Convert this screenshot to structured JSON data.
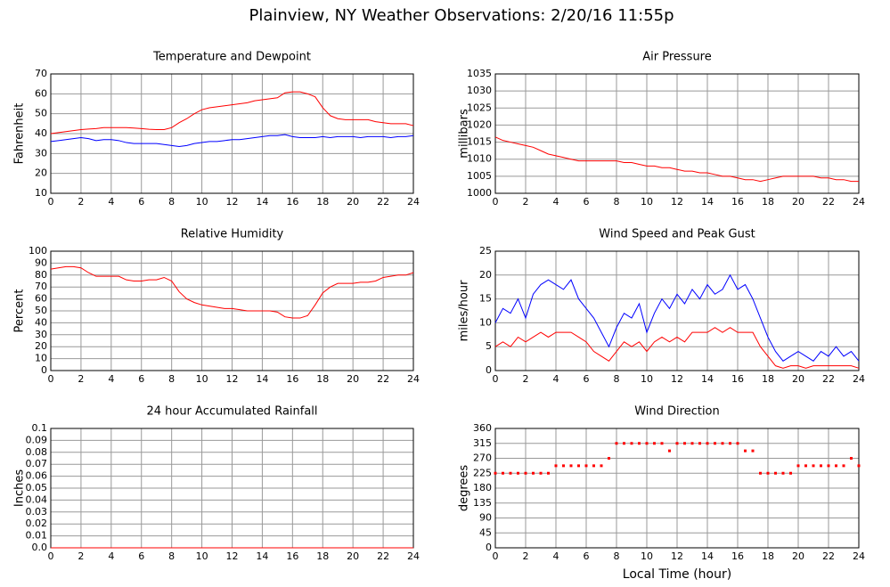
{
  "title": "Plainview, NY Weather Observations: 2/20/16 11:55p",
  "chart_data": [
    {
      "type": "line",
      "title": "Temperature and Dewpoint",
      "ylabel": "Fahrenheit",
      "x": [
        0,
        0.5,
        1,
        1.5,
        2,
        2.5,
        3,
        3.5,
        4,
        4.5,
        5,
        5.5,
        6,
        6.5,
        7,
        7.5,
        8,
        8.5,
        9,
        9.5,
        10,
        10.5,
        11,
        11.5,
        12,
        12.5,
        13,
        13.5,
        14,
        14.5,
        15,
        15.5,
        16,
        16.5,
        17,
        17.5,
        18,
        18.5,
        19,
        19.5,
        20,
        20.5,
        21,
        21.5,
        22,
        22.5,
        23,
        23.5,
        24
      ],
      "series": [
        {
          "name": "Temperature",
          "color": "#ff0000",
          "values": [
            40,
            40.5,
            41,
            41.5,
            42,
            42.3,
            42.5,
            43,
            43,
            43,
            43,
            42.8,
            42.5,
            42.2,
            42,
            42,
            43,
            45.5,
            47.5,
            50,
            52,
            53,
            53.5,
            54,
            54.5,
            55,
            55.5,
            56.5,
            57,
            57.5,
            58,
            60.5,
            61,
            61,
            60,
            58.5,
            53,
            49,
            47.5,
            47,
            47,
            47,
            47,
            46,
            45.5,
            45,
            45,
            45,
            44
          ]
        },
        {
          "name": "Dewpoint",
          "color": "#0000ff",
          "values": [
            36,
            36.5,
            37,
            37.5,
            38,
            37.5,
            36.5,
            37,
            37,
            36.5,
            35.5,
            35,
            35,
            35,
            35,
            34.5,
            34,
            33.5,
            34,
            35,
            35.5,
            36,
            36,
            36.5,
            37,
            37,
            37.5,
            38,
            38.5,
            39,
            39,
            39.5,
            38.5,
            38,
            38,
            38,
            38.5,
            38,
            38.5,
            38.5,
            38.5,
            38,
            38.5,
            38.5,
            38.5,
            38,
            38.5,
            38.5,
            39
          ]
        }
      ],
      "xlim": [
        0,
        24
      ],
      "xticks": [
        0,
        2,
        4,
        6,
        8,
        10,
        12,
        14,
        16,
        18,
        20,
        22,
        24
      ],
      "ylim": [
        10,
        70
      ],
      "yticks": [
        10,
        20,
        30,
        40,
        50,
        60,
        70
      ],
      "grid": true
    },
    {
      "type": "line",
      "title": "Air Pressure",
      "ylabel": "millibars",
      "x": [
        0,
        0.5,
        1,
        1.5,
        2,
        2.5,
        3,
        3.5,
        4,
        4.5,
        5,
        5.5,
        6,
        6.5,
        7,
        7.5,
        8,
        8.5,
        9,
        9.5,
        10,
        10.5,
        11,
        11.5,
        12,
        12.5,
        13,
        13.5,
        14,
        14.5,
        15,
        15.5,
        16,
        16.5,
        17,
        17.5,
        18,
        18.5,
        19,
        19.5,
        20,
        20.5,
        21,
        21.5,
        22,
        22.5,
        23,
        23.5,
        24
      ],
      "series": [
        {
          "name": "Pressure",
          "color": "#ff0000",
          "values": [
            1016.5,
            1015.5,
            1015,
            1014.5,
            1014,
            1013.5,
            1012.5,
            1011.5,
            1011,
            1010.5,
            1010,
            1009.5,
            1009.5,
            1009.5,
            1009.5,
            1009.5,
            1009.5,
            1009,
            1009,
            1008.5,
            1008,
            1008,
            1007.5,
            1007.5,
            1007,
            1006.5,
            1006.5,
            1006,
            1006,
            1005.5,
            1005,
            1005,
            1004.5,
            1004,
            1004,
            1003.5,
            1004,
            1004.5,
            1005,
            1005,
            1005,
            1005,
            1005,
            1004.5,
            1004.5,
            1004,
            1004,
            1003.5,
            1003.5
          ]
        }
      ],
      "xlim": [
        0,
        24
      ],
      "xticks": [
        0,
        2,
        4,
        6,
        8,
        10,
        12,
        14,
        16,
        18,
        20,
        22,
        24
      ],
      "ylim": [
        1000,
        1035
      ],
      "yticks": [
        1000,
        1005,
        1010,
        1015,
        1020,
        1025,
        1030,
        1035
      ],
      "grid": true
    },
    {
      "type": "line",
      "title": "Relative Humidity",
      "ylabel": "Percent",
      "x": [
        0,
        0.5,
        1,
        1.5,
        2,
        2.5,
        3,
        3.5,
        4,
        4.5,
        5,
        5.5,
        6,
        6.5,
        7,
        7.5,
        8,
        8.5,
        9,
        9.5,
        10,
        10.5,
        11,
        11.5,
        12,
        12.5,
        13,
        13.5,
        14,
        14.5,
        15,
        15.5,
        16,
        16.5,
        17,
        17.5,
        18,
        18.5,
        19,
        19.5,
        20,
        20.5,
        21,
        21.5,
        22,
        22.5,
        23,
        23.5,
        24
      ],
      "series": [
        {
          "name": "Humidity",
          "color": "#ff0000",
          "values": [
            85,
            86,
            87,
            87,
            86,
            82,
            79,
            79,
            79,
            79,
            76,
            75,
            75,
            76,
            76,
            78,
            75,
            66,
            60,
            57,
            55,
            54,
            53,
            52,
            52,
            51,
            50,
            50,
            50,
            50,
            49,
            45,
            44,
            44,
            46,
            55,
            65,
            70,
            73,
            73,
            73,
            74,
            74,
            75,
            78,
            79,
            80,
            80,
            82
          ]
        }
      ],
      "xlim": [
        0,
        24
      ],
      "xticks": [
        0,
        2,
        4,
        6,
        8,
        10,
        12,
        14,
        16,
        18,
        20,
        22,
        24
      ],
      "ylim": [
        0,
        100
      ],
      "yticks": [
        0,
        10,
        20,
        30,
        40,
        50,
        60,
        70,
        80,
        90,
        100
      ],
      "grid": true
    },
    {
      "type": "line",
      "title": "Wind Speed and Peak Gust",
      "ylabel": "miles/hour",
      "x": [
        0,
        0.5,
        1,
        1.5,
        2,
        2.5,
        3,
        3.5,
        4,
        4.5,
        5,
        5.5,
        6,
        6.5,
        7,
        7.5,
        8,
        8.5,
        9,
        9.5,
        10,
        10.5,
        11,
        11.5,
        12,
        12.5,
        13,
        13.5,
        14,
        14.5,
        15,
        15.5,
        16,
        16.5,
        17,
        17.5,
        18,
        18.5,
        19,
        19.5,
        20,
        20.5,
        21,
        21.5,
        22,
        22.5,
        23,
        23.5,
        24
      ],
      "series": [
        {
          "name": "Peak Gust",
          "color": "#0000ff",
          "values": [
            10,
            13,
            12,
            15,
            11,
            16,
            18,
            19,
            18,
            17,
            19,
            15,
            13,
            11,
            8,
            5,
            9,
            12,
            11,
            14,
            8,
            12,
            15,
            13,
            16,
            14,
            17,
            15,
            18,
            16,
            17,
            20,
            17,
            18,
            15,
            11,
            7,
            4,
            2,
            3,
            4,
            3,
            2,
            4,
            3,
            5,
            3,
            4,
            2
          ]
        },
        {
          "name": "Wind Speed",
          "color": "#ff0000",
          "values": [
            5,
            6,
            5,
            7,
            6,
            7,
            8,
            7,
            8,
            8,
            8,
            7,
            6,
            4,
            3,
            2,
            4,
            6,
            5,
            6,
            4,
            6,
            7,
            6,
            7,
            6,
            8,
            8,
            8,
            9,
            8,
            9,
            8,
            8,
            8,
            5,
            3,
            1,
            0.5,
            1,
            1,
            0.5,
            1,
            1,
            1,
            1,
            1,
            1,
            0.5
          ]
        }
      ],
      "xlim": [
        0,
        24
      ],
      "xticks": [
        0,
        2,
        4,
        6,
        8,
        10,
        12,
        14,
        16,
        18,
        20,
        22,
        24
      ],
      "ylim": [
        0,
        25
      ],
      "yticks": [
        0,
        5,
        10,
        15,
        20,
        25
      ],
      "grid": true
    },
    {
      "type": "line",
      "title": "24 hour Accumulated Rainfall",
      "ylabel": "Inches",
      "x": [
        0,
        0.5,
        1,
        1.5,
        2,
        2.5,
        3,
        3.5,
        4,
        4.5,
        5,
        5.5,
        6,
        6.5,
        7,
        7.5,
        8,
        8.5,
        9,
        9.5,
        10,
        10.5,
        11,
        11.5,
        12,
        12.5,
        13,
        13.5,
        14,
        14.5,
        15,
        15.5,
        16,
        16.5,
        17,
        17.5,
        18,
        18.5,
        19,
        19.5,
        20,
        20.5,
        21,
        21.5,
        22,
        22.5,
        23,
        23.5,
        24
      ],
      "series": [
        {
          "name": "Rainfall",
          "color": "#ff0000",
          "values": [
            0,
            0,
            0,
            0,
            0,
            0,
            0,
            0,
            0,
            0,
            0,
            0,
            0,
            0,
            0,
            0,
            0,
            0,
            0,
            0,
            0,
            0,
            0,
            0,
            0,
            0,
            0,
            0,
            0,
            0,
            0,
            0,
            0,
            0,
            0,
            0,
            0,
            0,
            0,
            0,
            0,
            0,
            0,
            0,
            0,
            0,
            0,
            0,
            0
          ]
        }
      ],
      "xlim": [
        0,
        24
      ],
      "xticks": [
        0,
        2,
        4,
        6,
        8,
        10,
        12,
        14,
        16,
        18,
        20,
        22,
        24
      ],
      "ylim": [
        0,
        0.1
      ],
      "yticks": [
        {
          "value": 0,
          "label": "0.0"
        },
        0.01,
        0.02,
        0.03,
        0.04,
        0.05,
        0.06,
        0.07,
        0.08,
        0.09,
        0.1
      ],
      "grid": true
    },
    {
      "type": "scatter",
      "title": "Wind Direction",
      "ylabel": "degrees",
      "xlabel": "Local Time (hour)",
      "x": [
        0,
        0.5,
        1,
        1.5,
        2,
        2.5,
        3,
        3.5,
        4,
        4.5,
        5,
        5.5,
        6,
        6.5,
        7,
        7.5,
        8,
        8.5,
        9,
        9.5,
        10,
        10.5,
        11,
        11.5,
        12,
        12.5,
        13,
        13.5,
        14,
        14.5,
        15,
        15.5,
        16,
        16.5,
        17,
        17.5,
        18,
        18.5,
        19,
        19.5,
        20,
        20.5,
        21,
        21.5,
        22,
        22.5,
        23,
        23.5,
        24
      ],
      "series": [
        {
          "name": "Direction",
          "color": "#ff0000",
          "values": [
            225,
            225,
            225,
            225,
            225,
            225,
            225,
            225,
            247.5,
            247.5,
            247.5,
            247.5,
            247.5,
            247.5,
            247.5,
            270,
            315,
            315,
            315,
            315,
            315,
            315,
            315,
            292.5,
            315,
            315,
            315,
            315,
            315,
            315,
            315,
            315,
            315,
            292.5,
            292.5,
            225,
            225,
            225,
            225,
            225,
            247.5,
            247.5,
            247.5,
            247.5,
            247.5,
            247.5,
            247.5,
            270,
            247.5
          ]
        }
      ],
      "xlim": [
        0,
        24
      ],
      "xticks": [
        0,
        2,
        4,
        6,
        8,
        10,
        12,
        14,
        16,
        18,
        20,
        22,
        24
      ],
      "ylim": [
        0,
        360
      ],
      "yticks": [
        0,
        45,
        90,
        135,
        180,
        225,
        270,
        315,
        360
      ],
      "grid": true
    }
  ]
}
